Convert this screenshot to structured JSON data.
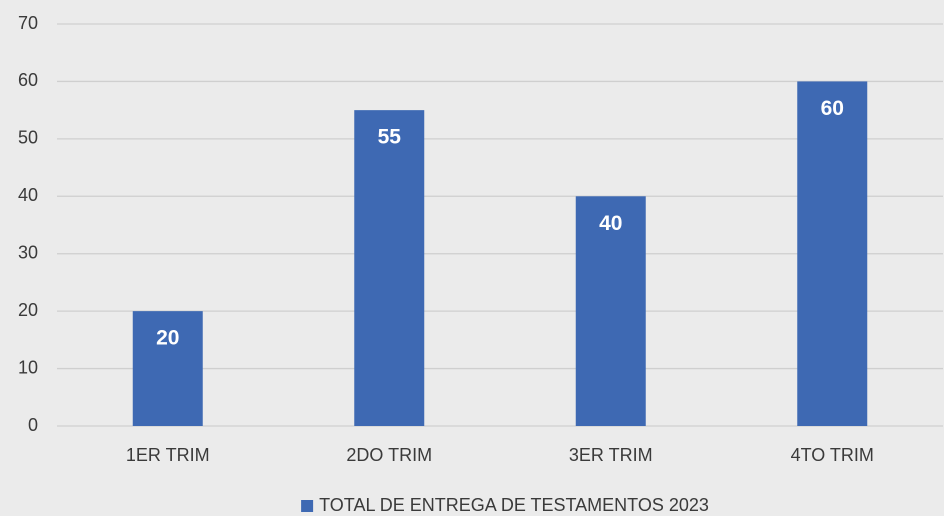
{
  "chart_data": {
    "type": "bar",
    "categories": [
      "1ER TRIM",
      "2DO TRIM",
      "3ER TRIM",
      "4TO TRIM"
    ],
    "series": [
      {
        "name": "TOTAL DE ENTREGA DE TESTAMENTOS 2023",
        "color": "#3e69b3",
        "values": [
          20,
          55,
          40,
          60
        ]
      }
    ],
    "ylim": [
      0,
      70
    ],
    "yticks": [
      0,
      10,
      20,
      30,
      40,
      50,
      60,
      70
    ],
    "grid": true,
    "legend": "bottom"
  }
}
